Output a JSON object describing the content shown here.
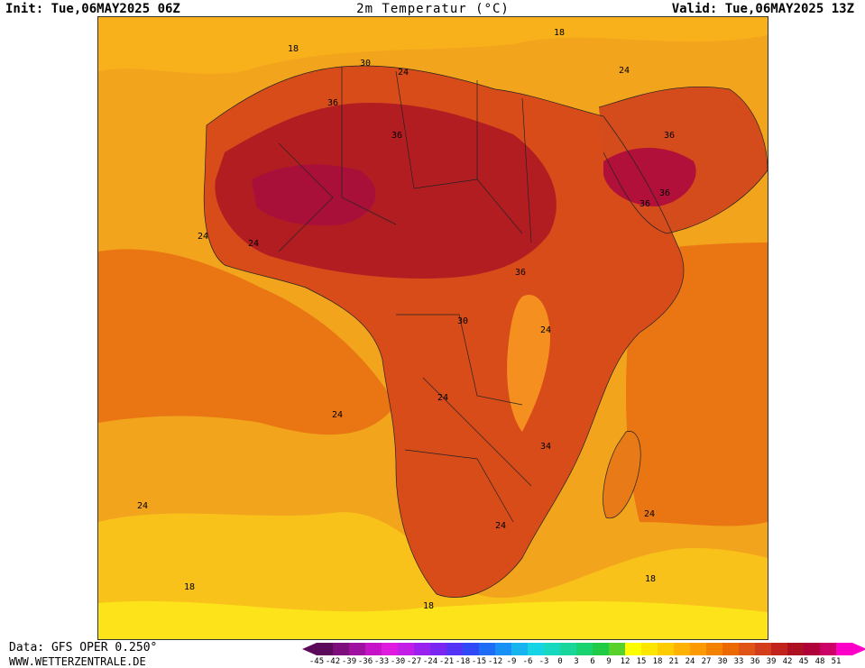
{
  "header": {
    "init": "Init: Tue,06MAY2025 06Z",
    "title": "2m Temperatur (°C)",
    "valid": "Valid: Tue,06MAY2025 13Z"
  },
  "footer": {
    "data_source": "Data: GFS OPER 0.250°",
    "website": "WWW.WETTERZENTRALE.DE"
  },
  "map": {
    "region": "Africa",
    "contour_labels": [
      "18",
      "18",
      "30",
      "24",
      "36",
      "36",
      "36",
      "36",
      "24",
      "36",
      "36",
      "24",
      "30",
      "24",
      "24",
      "24",
      "24",
      "24",
      "24",
      "34",
      "24",
      "18",
      "18",
      "18"
    ]
  },
  "legend": {
    "labels": [
      "-45",
      "-42",
      "-39",
      "-36",
      "-33",
      "-30",
      "-27",
      "-24",
      "-21",
      "-18",
      "-15",
      "-12",
      "-9",
      "-6",
      "-3",
      "0",
      "3",
      "6",
      "9",
      "12",
      "15",
      "18",
      "21",
      "24",
      "27",
      "30",
      "33",
      "36",
      "39",
      "42",
      "45",
      "48",
      "51"
    ],
    "colors": [
      "#5c0a5a",
      "#7c0f7c",
      "#a010a0",
      "#c514c5",
      "#e01be0",
      "#c21ee6",
      "#9b22ee",
      "#7a26f2",
      "#5533f5",
      "#2f49f6",
      "#1f6cf7",
      "#1990f5",
      "#17b4f0",
      "#15d4e6",
      "#17d9c0",
      "#19d69a",
      "#1ad270",
      "#20cc45",
      "#58d22a",
      "#ffff00",
      "#ffe600",
      "#ffcc00",
      "#ffb300",
      "#ff9900",
      "#f28200",
      "#ea6a00",
      "#e05417",
      "#d43d1c",
      "#c2231d",
      "#ad1020",
      "#b0003a",
      "#cc0066",
      "#ff00c8"
    ]
  }
}
